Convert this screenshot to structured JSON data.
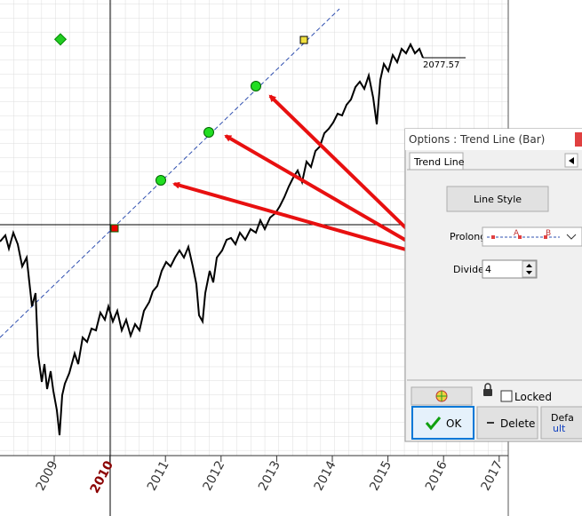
{
  "chart": {
    "last_price": "2077.57",
    "x_axis_labels": [
      "2009",
      "2010",
      "2011",
      "2012",
      "2013",
      "2014",
      "2015",
      "2016",
      "2017"
    ]
  },
  "window": {
    "title": "Options : Trend Line (Bar)",
    "tab": "Trend Line",
    "line_style_button": "Line Style",
    "prolong_label": "Prolong",
    "prolong_markers": [
      "A",
      "B"
    ],
    "divide_label": "Divide",
    "divide_value": "4",
    "locked_label": "Locked",
    "ok_button": "OK",
    "delete_button": "Delete",
    "default_button": [
      "Defa",
      "ult"
    ]
  }
}
